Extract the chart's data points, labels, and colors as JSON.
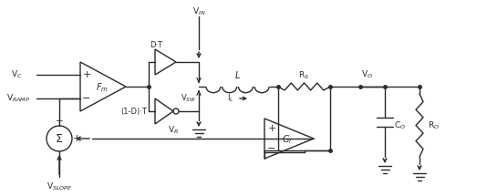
{
  "bg": "#ffffff",
  "lc": "#2a2a2a",
  "lw": 1.0,
  "labels": {
    "VC": "V$_C$",
    "VRAMP": "V$_{RAMP}$",
    "VIN": "V$_{IN}$",
    "VSW": "V$_{SW}$",
    "L": "L",
    "RS": "R$_S$",
    "VO": "V$_O$",
    "CO": "C$_O$",
    "RO": "R$_O$",
    "IL": "I$_L$",
    "VR": "V$_R$",
    "VSLOPE": "V$_{SLOPE}$",
    "Fm": "F$_m$",
    "GI": "G$_I$",
    "DT": "D·T",
    "1mDT": "(1-D)·T",
    "sigma": "Σ",
    "plus": "+",
    "minus": "−"
  }
}
